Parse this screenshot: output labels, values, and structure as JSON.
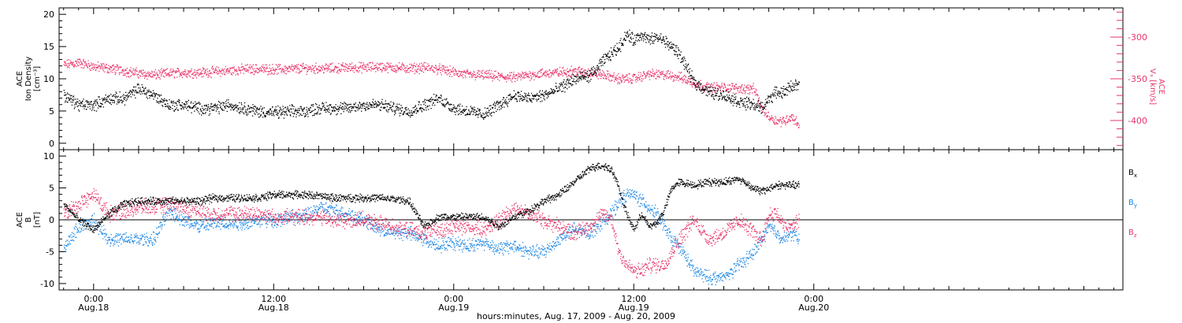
{
  "figure": {
    "xlabel": "hours:minutes, Aug. 17, 2009 - Aug. 20, 2009"
  },
  "colors": {
    "black": "#000000",
    "pink": "#e8356a",
    "blue": "#1e88e5"
  },
  "chart_data": [
    {
      "type": "scatter",
      "panel": "top",
      "x_unit": "hours since 2009-08-17 00:00",
      "xlim": [
        21.7,
        92.6
      ],
      "x_ticks": [
        {
          "x": 24,
          "time": "0:00",
          "date": "Aug.18"
        },
        {
          "x": 36,
          "time": "12:00",
          "date": "Aug.18"
        },
        {
          "x": 48,
          "time": "0:00",
          "date": "Aug.19"
        },
        {
          "x": 60,
          "time": "12:00",
          "date": "Aug.19"
        },
        {
          "x": 72,
          "time": "0:00",
          "date": "Aug.20"
        }
      ],
      "ylabel": {
        "line1": "ACE",
        "line2": "Ion Density",
        "line3": "[cm⁻³]"
      },
      "ylim": [
        -1,
        21
      ],
      "yticks": [
        0,
        5,
        10,
        15,
        20
      ],
      "y2label": {
        "line1": "ACE",
        "line2": "Vₓ [km/s]"
      },
      "y2lim": [
        -435,
        -265
      ],
      "y2ticks": [
        -300,
        -350,
        -400
      ],
      "series": [
        {
          "axis": "left",
          "color": "black",
          "x": [
            22,
            23,
            24,
            25,
            26,
            27,
            28,
            29,
            30,
            31,
            32,
            33,
            34,
            35,
            36,
            37,
            38,
            39,
            40,
            41,
            42,
            43,
            44,
            45,
            46,
            47,
            48,
            49,
            50,
            51,
            52,
            53,
            54,
            55,
            56,
            57,
            57.5,
            58,
            58.5,
            59,
            59.5,
            60,
            60.5,
            61,
            61.5,
            62,
            62.5,
            63,
            64,
            65,
            66,
            67,
            68,
            68.5,
            69,
            69.5,
            70,
            70.5,
            71
          ],
          "y": [
            7.5,
            6,
            6,
            7,
            7,
            8.5,
            7.5,
            6,
            6,
            5.5,
            5.5,
            6,
            5.5,
            5,
            4.8,
            5,
            5,
            5.5,
            5.5,
            5.5,
            6,
            6,
            5.5,
            5,
            6,
            7,
            5.5,
            5,
            4.5,
            6,
            7.5,
            7,
            7.5,
            8.5,
            10,
            10.5,
            11.5,
            13,
            14,
            15,
            17,
            16,
            17,
            16,
            16.5,
            16,
            15,
            14,
            9.5,
            8,
            7.5,
            6.5,
            6,
            5.5,
            7,
            8,
            8,
            9,
            9
          ]
        },
        {
          "axis": "right",
          "color": "pink",
          "x": [
            22,
            23,
            24,
            25,
            26,
            27,
            28,
            29,
            30,
            31,
            32,
            33,
            34,
            35,
            36,
            37,
            38,
            39,
            40,
            41,
            42,
            43,
            44,
            45,
            46,
            47,
            48,
            49,
            50,
            51,
            52,
            53,
            54,
            55,
            56,
            57,
            58,
            59,
            60,
            61,
            62,
            63,
            64,
            65,
            66,
            67,
            68,
            68.5,
            69,
            69.5,
            70,
            70.5,
            71
          ],
          "y": [
            -333,
            -330,
            -335,
            -337,
            -340,
            -343,
            -345,
            -343,
            -342,
            -342,
            -341,
            -340,
            -338,
            -338,
            -338,
            -338,
            -337,
            -337,
            -337,
            -336,
            -336,
            -335,
            -336,
            -337,
            -336,
            -338,
            -342,
            -345,
            -345,
            -347,
            -348,
            -345,
            -343,
            -342,
            -340,
            -342,
            -345,
            -350,
            -349,
            -344,
            -345,
            -347,
            -355,
            -360,
            -360,
            -361,
            -362,
            -385,
            -395,
            -400,
            -400,
            -395,
            -405
          ]
        }
      ]
    },
    {
      "type": "scatter",
      "panel": "bottom",
      "x_unit": "hours since 2009-08-17 00:00",
      "xlim": [
        21.7,
        92.6
      ],
      "x_ticks": [
        {
          "x": 24,
          "time": "0:00",
          "date": "Aug.18"
        },
        {
          "x": 36,
          "time": "12:00",
          "date": "Aug.18"
        },
        {
          "x": 48,
          "time": "0:00",
          "date": "Aug.19"
        },
        {
          "x": 60,
          "time": "12:00",
          "date": "Aug.19"
        },
        {
          "x": 72,
          "time": "0:00",
          "date": "Aug.20"
        }
      ],
      "ylabel": {
        "line1": "ACE",
        "line2": "B",
        "line3": "[nT]"
      },
      "ylim": [
        -11,
        11
      ],
      "yticks": [
        -10,
        -5,
        0,
        5,
        10
      ],
      "zero_line": true,
      "series": [
        {
          "name": "Bx",
          "label": "B",
          "subscript": "x",
          "color": "black",
          "x": [
            22,
            23,
            24,
            25,
            26,
            27,
            28,
            29,
            30,
            31,
            32,
            33,
            34,
            35,
            36,
            37,
            38,
            39,
            40,
            41,
            42,
            43,
            44,
            45,
            46,
            47,
            48,
            49,
            50,
            51,
            52,
            53,
            54,
            55,
            56,
            57,
            57.5,
            58,
            58.5,
            59,
            59.5,
            60,
            60.5,
            61,
            61.5,
            62,
            62.5,
            63,
            64,
            65,
            66,
            67,
            68,
            68.5,
            69,
            69.5,
            70,
            70.5,
            71
          ],
          "y": [
            2.5,
            0,
            -1.5,
            1,
            2.5,
            3,
            3,
            3,
            3,
            3,
            3.5,
            3.5,
            3.5,
            3.5,
            4,
            4,
            4,
            3.8,
            3.5,
            3.5,
            3.5,
            3.5,
            3.3,
            3,
            -1,
            0.5,
            0.5,
            0.5,
            0.5,
            -1,
            0.5,
            1.5,
            3,
            4,
            6,
            8,
            8.5,
            8.5,
            8,
            5,
            1,
            -1.5,
            1,
            -1,
            -0.5,
            1.5,
            5,
            6,
            5.5,
            6,
            6,
            6.5,
            5,
            4.5,
            5,
            5.5,
            5.5,
            5.5,
            5.5
          ]
        },
        {
          "name": "By",
          "label": "B",
          "subscript": "y",
          "color": "blue",
          "x": [
            22,
            23,
            24,
            25,
            26,
            27,
            28,
            29,
            30,
            31,
            32,
            33,
            34,
            35,
            36,
            37,
            38,
            39,
            40,
            41,
            42,
            43,
            44,
            45,
            46,
            47,
            48,
            49,
            50,
            51,
            52,
            53,
            54,
            55,
            56,
            57,
            57.5,
            58,
            58.5,
            59,
            59.5,
            60,
            60.5,
            61,
            61.5,
            62,
            62.5,
            63,
            64,
            65,
            66,
            67,
            68,
            68.5,
            69,
            69.5,
            70,
            70.5,
            71
          ],
          "y": [
            -4.5,
            -1,
            0,
            -3,
            -3,
            -3,
            -3,
            1.5,
            0,
            -1,
            -0.5,
            -0.5,
            -0.5,
            0,
            0,
            0.5,
            0.5,
            2,
            1.5,
            1,
            0,
            -1.5,
            -2,
            -2,
            -3,
            -4,
            -3.5,
            -4,
            -3.5,
            -4.5,
            -4,
            -5,
            -5,
            -3,
            -1.5,
            -2,
            -1,
            0,
            1,
            3,
            4,
            4,
            3,
            2,
            1,
            -1,
            -3,
            -4,
            -8,
            -9,
            -9,
            -7,
            -5,
            -3,
            -1,
            -2,
            -3,
            -2,
            -3
          ]
        },
        {
          "name": "Bz",
          "label": "B",
          "subscript": "z",
          "color": "pink",
          "x": [
            22,
            23,
            24,
            25,
            26,
            27,
            28,
            29,
            30,
            31,
            32,
            33,
            34,
            35,
            36,
            37,
            38,
            39,
            40,
            41,
            42,
            43,
            44,
            45,
            46,
            47,
            48,
            49,
            50,
            51,
            52,
            53,
            54,
            55,
            56,
            57,
            57.5,
            58,
            58.5,
            59,
            59.5,
            60,
            60.5,
            61,
            61.5,
            62,
            62.5,
            63,
            64,
            65,
            66,
            67,
            68,
            68.5,
            69,
            69.5,
            70,
            70.5,
            71
          ],
          "y": [
            1,
            2.5,
            4,
            1,
            1.5,
            2,
            2,
            2.5,
            2,
            1.5,
            1,
            1,
            1,
            1,
            0.5,
            0.5,
            0.5,
            0.5,
            0,
            0,
            0,
            -0.5,
            -1,
            -1.5,
            -2,
            -1.5,
            -1,
            -1,
            -1.5,
            0,
            2,
            1,
            0,
            -1,
            -2,
            -1,
            0,
            1,
            0,
            -5,
            -7,
            -8,
            -8,
            -7,
            -7,
            -7,
            -5,
            -3,
            0,
            -3,
            -2,
            0,
            -2,
            -3,
            1,
            1,
            -1,
            -1,
            0
          ]
        }
      ]
    }
  ]
}
